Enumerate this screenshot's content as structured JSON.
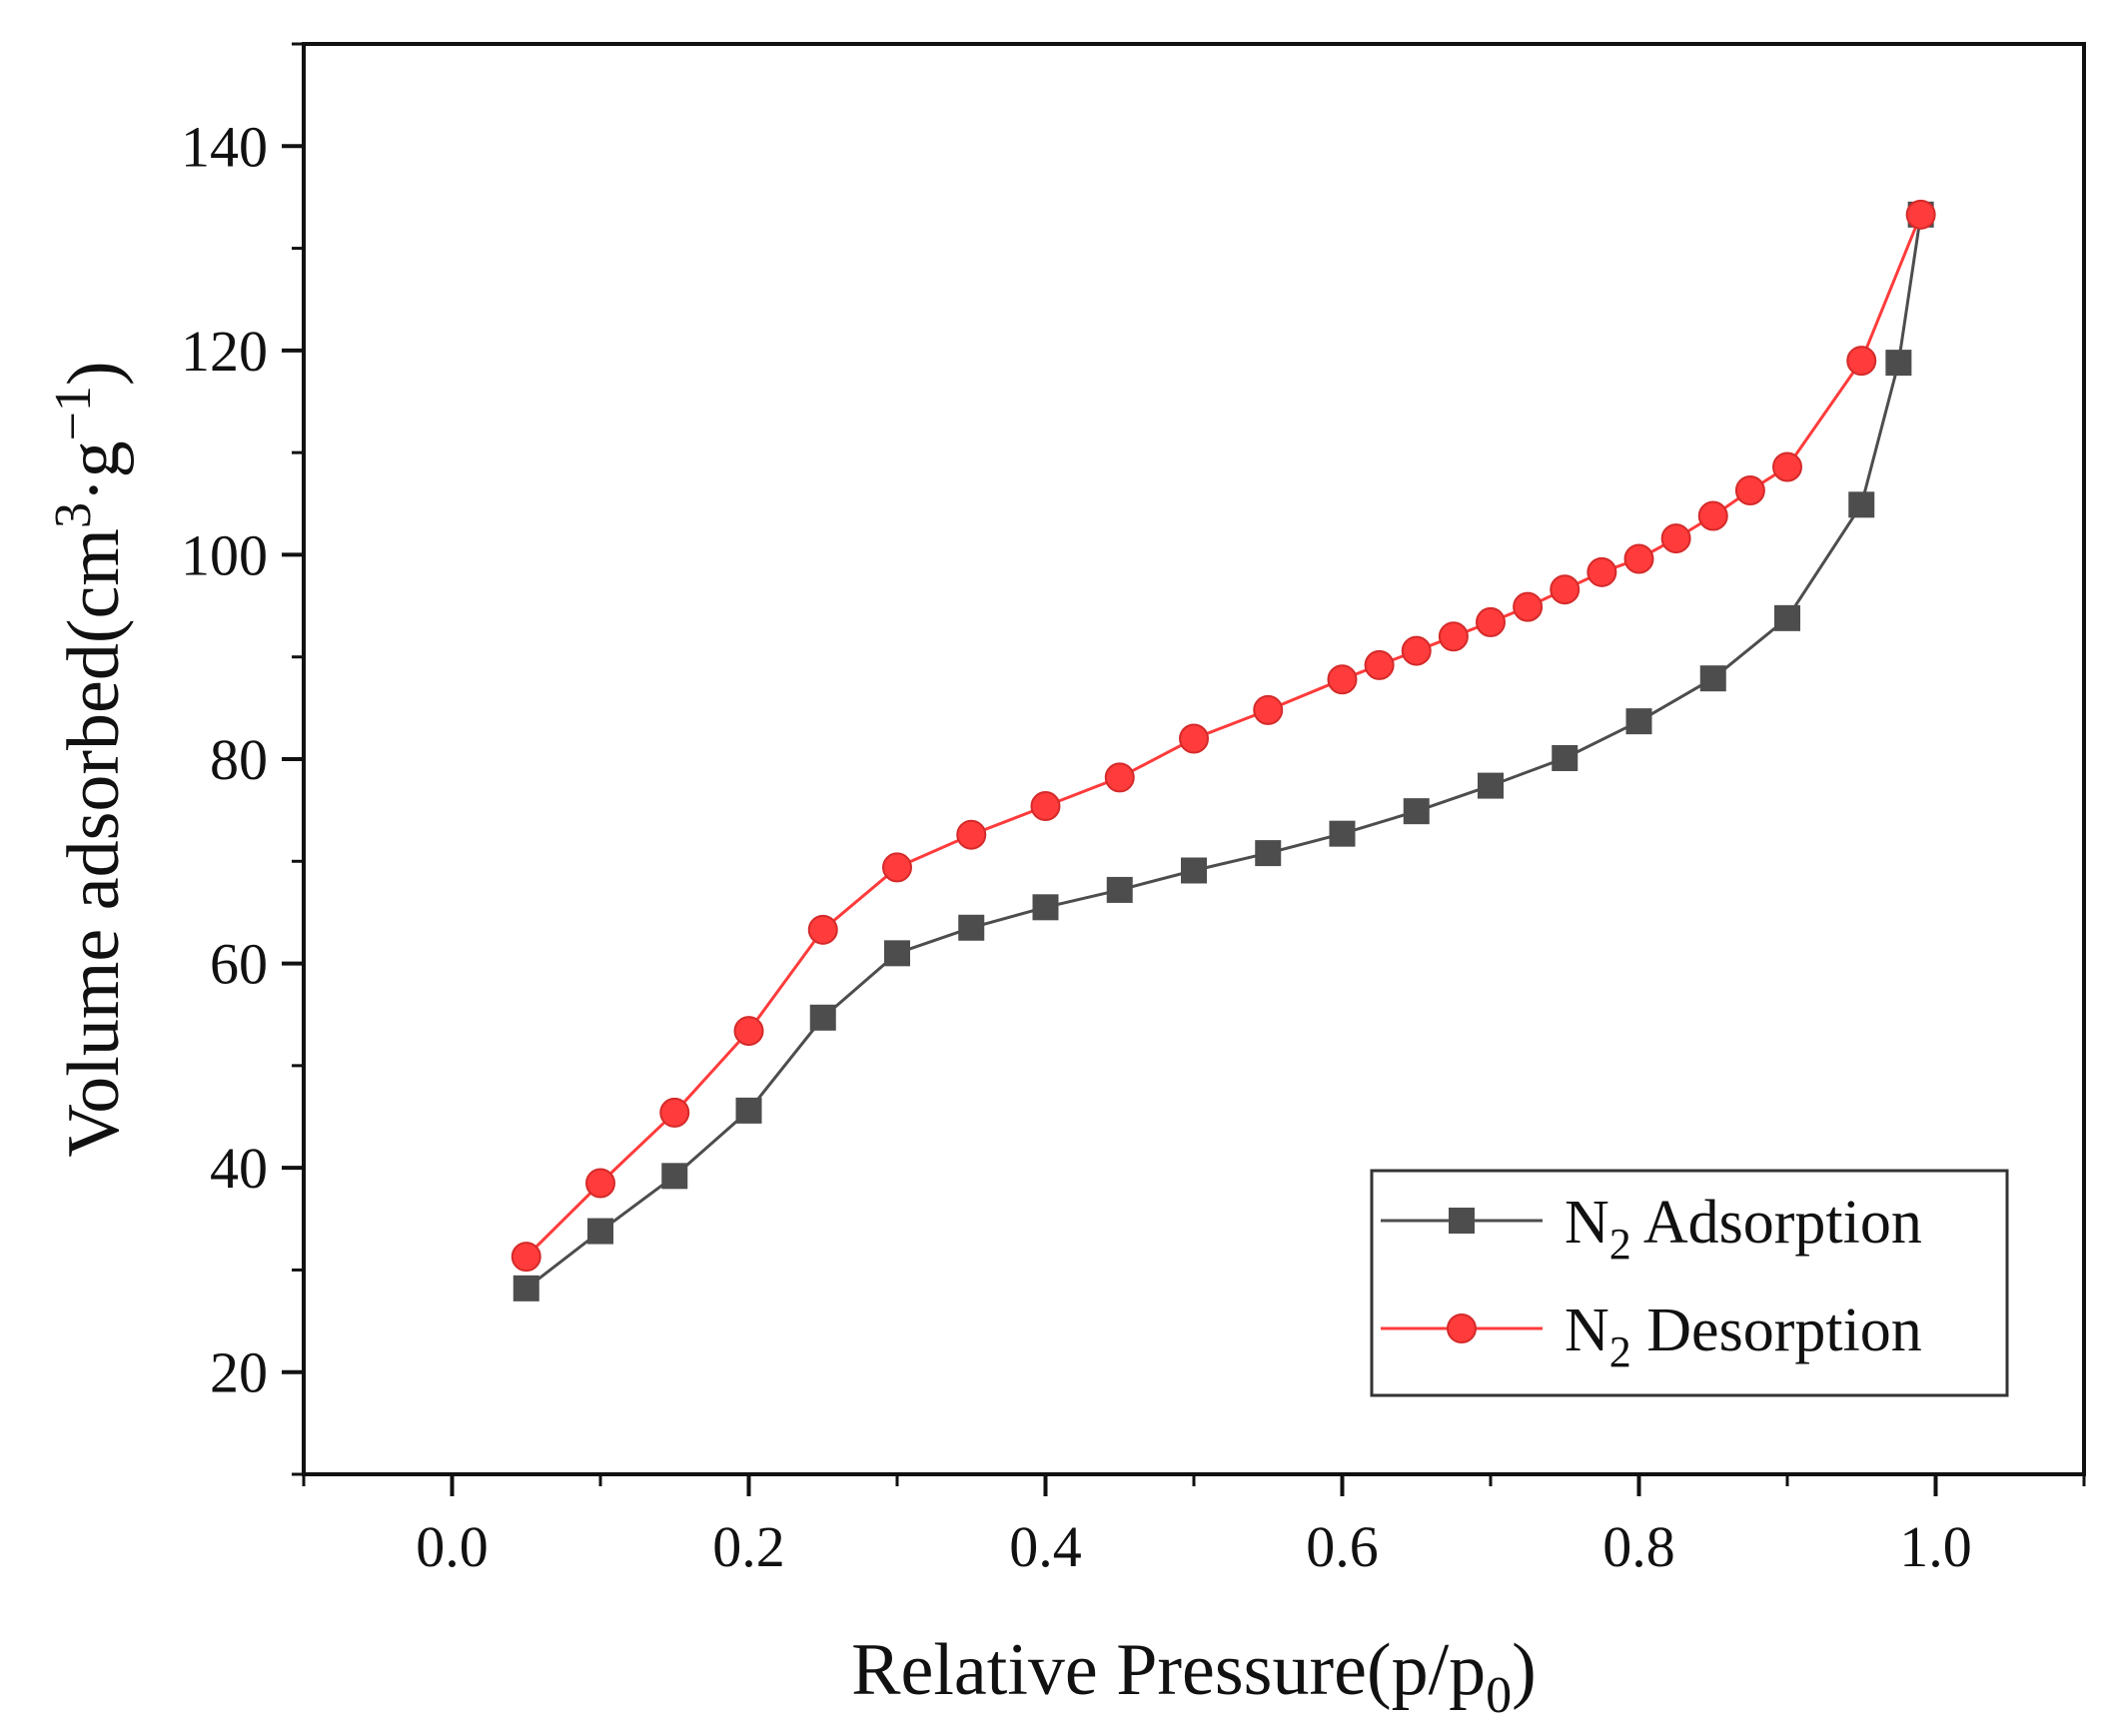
{
  "chart_data": {
    "type": "line",
    "title": "",
    "xlabel": "Relative Pressure(p/p",
    "xlabel_subscript": "0",
    "xlabel_suffix": ")",
    "ylabel": "Volume adsorbed(cm",
    "ylabel_superscript_1": "3",
    "ylabel_middle": "·g",
    "ylabel_superscript_2": "−1",
    "ylabel_suffix": ")",
    "xlim": [
      -0.1,
      1.1
    ],
    "ylim": [
      10,
      150
    ],
    "xticks": [
      0.0,
      0.2,
      0.4,
      0.6,
      0.8,
      1.0
    ],
    "xtick_labels": [
      "0.0",
      "0.2",
      "0.4",
      "0.6",
      "0.8",
      "1.0"
    ],
    "yticks": [
      20,
      40,
      60,
      80,
      100,
      120,
      140
    ],
    "ytick_labels": [
      "20",
      "40",
      "60",
      "80",
      "100",
      "120",
      "140"
    ],
    "grid": false,
    "legend_position": "bottom-right",
    "series": [
      {
        "name": "N2 Adsorption",
        "label_main": "N",
        "label_sub": "2",
        "label_rest": " Adsorption",
        "color": "#4d4d4d",
        "marker": "square",
        "x": [
          0.05,
          0.1,
          0.15,
          0.2,
          0.25,
          0.3,
          0.35,
          0.4,
          0.45,
          0.5,
          0.55,
          0.6,
          0.65,
          0.7,
          0.75,
          0.8,
          0.85,
          0.9,
          0.95,
          0.975,
          0.99
        ],
        "y": [
          28.2,
          33.8,
          39.2,
          45.6,
          54.7,
          61.0,
          63.5,
          65.5,
          67.2,
          69.1,
          70.8,
          72.7,
          74.9,
          77.4,
          80.1,
          83.7,
          87.9,
          93.8,
          104.9,
          118.8,
          133.3
        ]
      },
      {
        "name": "N2 Desorption",
        "label_main": "N",
        "label_sub": "2",
        "label_rest": " Desorption",
        "color": "#ff3b3b",
        "marker": "circle",
        "x": [
          0.05,
          0.1,
          0.15,
          0.2,
          0.25,
          0.3,
          0.35,
          0.4,
          0.45,
          0.5,
          0.55,
          0.6,
          0.625,
          0.65,
          0.675,
          0.7,
          0.725,
          0.75,
          0.775,
          0.8,
          0.825,
          0.85,
          0.875,
          0.9,
          0.95,
          0.99
        ],
        "y": [
          31.3,
          38.5,
          45.4,
          53.4,
          63.3,
          69.4,
          72.6,
          75.4,
          78.2,
          82.0,
          84.8,
          87.8,
          89.2,
          90.6,
          92.0,
          93.4,
          94.9,
          96.6,
          98.3,
          99.6,
          101.6,
          103.8,
          106.3,
          108.6,
          119.0,
          133.3
        ]
      }
    ]
  }
}
